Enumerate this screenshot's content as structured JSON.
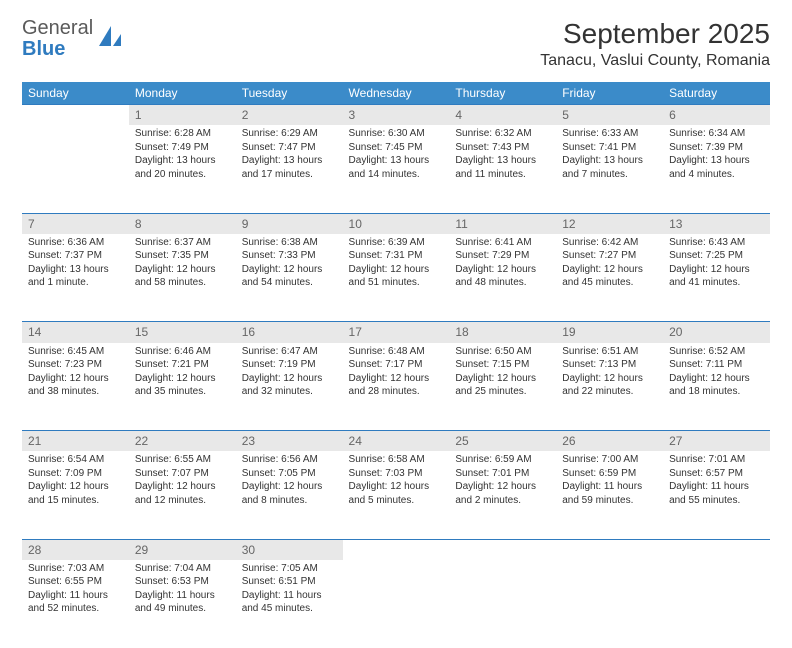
{
  "brand": {
    "part1": "General",
    "part2": "Blue"
  },
  "title": "September 2025",
  "location": "Tanacu, Vaslui County, Romania",
  "colors": {
    "header_bg": "#3b8bc9",
    "daynum_bg": "#e8e8e8",
    "accent": "#2f7bbf",
    "text": "#333333"
  },
  "day_headers": [
    "Sunday",
    "Monday",
    "Tuesday",
    "Wednesday",
    "Thursday",
    "Friday",
    "Saturday"
  ],
  "weeks": [
    [
      null,
      {
        "n": "1",
        "sr": "Sunrise: 6:28 AM",
        "ss": "Sunset: 7:49 PM",
        "dl": "Daylight: 13 hours and 20 minutes."
      },
      {
        "n": "2",
        "sr": "Sunrise: 6:29 AM",
        "ss": "Sunset: 7:47 PM",
        "dl": "Daylight: 13 hours and 17 minutes."
      },
      {
        "n": "3",
        "sr": "Sunrise: 6:30 AM",
        "ss": "Sunset: 7:45 PM",
        "dl": "Daylight: 13 hours and 14 minutes."
      },
      {
        "n": "4",
        "sr": "Sunrise: 6:32 AM",
        "ss": "Sunset: 7:43 PM",
        "dl": "Daylight: 13 hours and 11 minutes."
      },
      {
        "n": "5",
        "sr": "Sunrise: 6:33 AM",
        "ss": "Sunset: 7:41 PM",
        "dl": "Daylight: 13 hours and 7 minutes."
      },
      {
        "n": "6",
        "sr": "Sunrise: 6:34 AM",
        "ss": "Sunset: 7:39 PM",
        "dl": "Daylight: 13 hours and 4 minutes."
      }
    ],
    [
      {
        "n": "7",
        "sr": "Sunrise: 6:36 AM",
        "ss": "Sunset: 7:37 PM",
        "dl": "Daylight: 13 hours and 1 minute."
      },
      {
        "n": "8",
        "sr": "Sunrise: 6:37 AM",
        "ss": "Sunset: 7:35 PM",
        "dl": "Daylight: 12 hours and 58 minutes."
      },
      {
        "n": "9",
        "sr": "Sunrise: 6:38 AM",
        "ss": "Sunset: 7:33 PM",
        "dl": "Daylight: 12 hours and 54 minutes."
      },
      {
        "n": "10",
        "sr": "Sunrise: 6:39 AM",
        "ss": "Sunset: 7:31 PM",
        "dl": "Daylight: 12 hours and 51 minutes."
      },
      {
        "n": "11",
        "sr": "Sunrise: 6:41 AM",
        "ss": "Sunset: 7:29 PM",
        "dl": "Daylight: 12 hours and 48 minutes."
      },
      {
        "n": "12",
        "sr": "Sunrise: 6:42 AM",
        "ss": "Sunset: 7:27 PM",
        "dl": "Daylight: 12 hours and 45 minutes."
      },
      {
        "n": "13",
        "sr": "Sunrise: 6:43 AM",
        "ss": "Sunset: 7:25 PM",
        "dl": "Daylight: 12 hours and 41 minutes."
      }
    ],
    [
      {
        "n": "14",
        "sr": "Sunrise: 6:45 AM",
        "ss": "Sunset: 7:23 PM",
        "dl": "Daylight: 12 hours and 38 minutes."
      },
      {
        "n": "15",
        "sr": "Sunrise: 6:46 AM",
        "ss": "Sunset: 7:21 PM",
        "dl": "Daylight: 12 hours and 35 minutes."
      },
      {
        "n": "16",
        "sr": "Sunrise: 6:47 AM",
        "ss": "Sunset: 7:19 PM",
        "dl": "Daylight: 12 hours and 32 minutes."
      },
      {
        "n": "17",
        "sr": "Sunrise: 6:48 AM",
        "ss": "Sunset: 7:17 PM",
        "dl": "Daylight: 12 hours and 28 minutes."
      },
      {
        "n": "18",
        "sr": "Sunrise: 6:50 AM",
        "ss": "Sunset: 7:15 PM",
        "dl": "Daylight: 12 hours and 25 minutes."
      },
      {
        "n": "19",
        "sr": "Sunrise: 6:51 AM",
        "ss": "Sunset: 7:13 PM",
        "dl": "Daylight: 12 hours and 22 minutes."
      },
      {
        "n": "20",
        "sr": "Sunrise: 6:52 AM",
        "ss": "Sunset: 7:11 PM",
        "dl": "Daylight: 12 hours and 18 minutes."
      }
    ],
    [
      {
        "n": "21",
        "sr": "Sunrise: 6:54 AM",
        "ss": "Sunset: 7:09 PM",
        "dl": "Daylight: 12 hours and 15 minutes."
      },
      {
        "n": "22",
        "sr": "Sunrise: 6:55 AM",
        "ss": "Sunset: 7:07 PM",
        "dl": "Daylight: 12 hours and 12 minutes."
      },
      {
        "n": "23",
        "sr": "Sunrise: 6:56 AM",
        "ss": "Sunset: 7:05 PM",
        "dl": "Daylight: 12 hours and 8 minutes."
      },
      {
        "n": "24",
        "sr": "Sunrise: 6:58 AM",
        "ss": "Sunset: 7:03 PM",
        "dl": "Daylight: 12 hours and 5 minutes."
      },
      {
        "n": "25",
        "sr": "Sunrise: 6:59 AM",
        "ss": "Sunset: 7:01 PM",
        "dl": "Daylight: 12 hours and 2 minutes."
      },
      {
        "n": "26",
        "sr": "Sunrise: 7:00 AM",
        "ss": "Sunset: 6:59 PM",
        "dl": "Daylight: 11 hours and 59 minutes."
      },
      {
        "n": "27",
        "sr": "Sunrise: 7:01 AM",
        "ss": "Sunset: 6:57 PM",
        "dl": "Daylight: 11 hours and 55 minutes."
      }
    ],
    [
      {
        "n": "28",
        "sr": "Sunrise: 7:03 AM",
        "ss": "Sunset: 6:55 PM",
        "dl": "Daylight: 11 hours and 52 minutes."
      },
      {
        "n": "29",
        "sr": "Sunrise: 7:04 AM",
        "ss": "Sunset: 6:53 PM",
        "dl": "Daylight: 11 hours and 49 minutes."
      },
      {
        "n": "30",
        "sr": "Sunrise: 7:05 AM",
        "ss": "Sunset: 6:51 PM",
        "dl": "Daylight: 11 hours and 45 minutes."
      },
      null,
      null,
      null,
      null
    ]
  ]
}
